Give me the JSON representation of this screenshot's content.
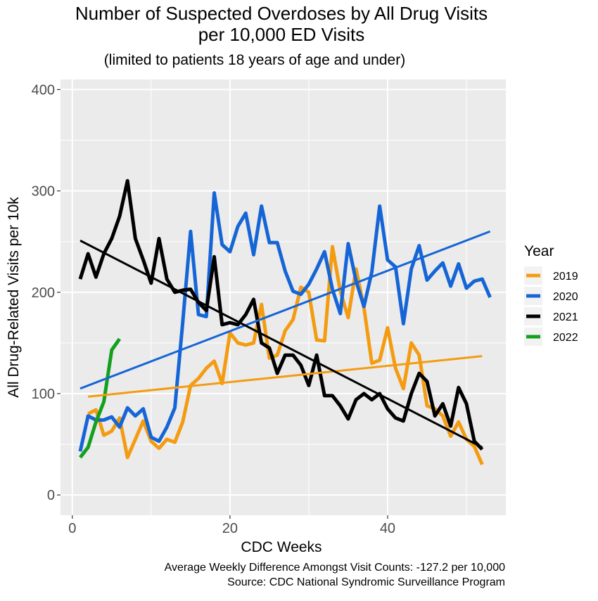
{
  "chart_data": {
    "type": "line",
    "title_line1": "Number of Suspected Overdoses by All Drug Visits",
    "title_line2": "per 10,000 ED Visits",
    "subtitle": "(limited to patients 18 years of age and under)",
    "xlabel": "CDC Weeks",
    "ylabel": "All Drug-Related Visits per 10k",
    "xlim": [
      -1.5,
      55
    ],
    "ylim": [
      -20,
      410
    ],
    "x_ticks": [
      0,
      20,
      40
    ],
    "y_ticks": [
      0,
      100,
      200,
      300,
      400
    ],
    "legend": {
      "title": "Year",
      "position": "right"
    },
    "captions": [
      "Average Weekly Difference Amongst Visit Counts: -127.2 per 10,000",
      "Source: CDC National Syndromic Surveillance Program"
    ],
    "series": [
      {
        "name": "2019",
        "color": "#f39c12",
        "x": [
          2,
          3,
          4,
          5,
          6,
          7,
          8,
          9,
          10,
          11,
          12,
          13,
          14,
          15,
          16,
          17,
          18,
          19,
          20,
          21,
          22,
          23,
          24,
          25,
          26,
          27,
          28,
          29,
          30,
          31,
          32,
          33,
          34,
          35,
          36,
          37,
          38,
          39,
          40,
          41,
          42,
          43,
          44,
          45,
          46,
          47,
          48,
          49,
          50,
          51,
          52
        ],
        "values": [
          80,
          84,
          59,
          63,
          76,
          37,
          55,
          73,
          53,
          46,
          55,
          52,
          72,
          108,
          115,
          125,
          132,
          110,
          160,
          150,
          148,
          150,
          188,
          135,
          138,
          162,
          173,
          205,
          200,
          153,
          152,
          245,
          201,
          175,
          223,
          185,
          130,
          133,
          165,
          125,
          105,
          150,
          138,
          88,
          85,
          78,
          58,
          72,
          55,
          48,
          30
        ],
        "trend": [
          97,
          137
        ]
      },
      {
        "name": "2020",
        "color": "#1565d6",
        "x": [
          1,
          2,
          3,
          4,
          5,
          6,
          7,
          8,
          9,
          10,
          11,
          12,
          13,
          14,
          15,
          16,
          17,
          18,
          19,
          20,
          21,
          22,
          23,
          24,
          25,
          26,
          27,
          28,
          29,
          30,
          31,
          32,
          33,
          34,
          35,
          36,
          37,
          38,
          39,
          40,
          41,
          42,
          43,
          44,
          45,
          46,
          47,
          48,
          49,
          50,
          51,
          52,
          53
        ],
        "values": [
          43,
          78,
          74,
          74,
          77,
          67,
          86,
          78,
          85,
          57,
          53,
          67,
          86,
          170,
          260,
          178,
          176,
          298,
          247,
          240,
          265,
          278,
          237,
          285,
          249,
          249,
          221,
          201,
          198,
          208,
          223,
          240,
          203,
          179,
          248,
          211,
          186,
          220,
          285,
          232,
          225,
          169,
          223,
          246,
          212,
          221,
          229,
          206,
          228,
          204,
          211,
          213,
          195
        ],
        "trend": [
          105,
          260
        ]
      },
      {
        "name": "2021",
        "color": "#000000",
        "x": [
          1,
          2,
          3,
          4,
          5,
          6,
          7,
          8,
          9,
          10,
          11,
          12,
          13,
          14,
          15,
          16,
          17,
          18,
          19,
          20,
          21,
          22,
          23,
          24,
          25,
          26,
          27,
          28,
          29,
          30,
          31,
          32,
          33,
          34,
          35,
          36,
          37,
          38,
          39,
          40,
          41,
          42,
          43,
          44,
          45,
          46,
          47,
          48,
          49,
          50,
          51,
          52
        ],
        "values": [
          213,
          238,
          215,
          238,
          253,
          275,
          310,
          253,
          232,
          209,
          253,
          213,
          200,
          202,
          203,
          190,
          182,
          235,
          168,
          170,
          168,
          178,
          193,
          150,
          145,
          120,
          138,
          138,
          128,
          108,
          138,
          98,
          98,
          88,
          75,
          94,
          100,
          94,
          100,
          85,
          76,
          73,
          100,
          120,
          112,
          78,
          90,
          68,
          106,
          90,
          53,
          45
        ],
        "trend": [
          251,
          47
        ]
      },
      {
        "name": "2022",
        "color": "#14a01e",
        "x": [
          1,
          2,
          3,
          4,
          5,
          6
        ],
        "values": [
          37,
          47,
          72,
          92,
          143,
          154
        ],
        "trend": null
      }
    ]
  }
}
